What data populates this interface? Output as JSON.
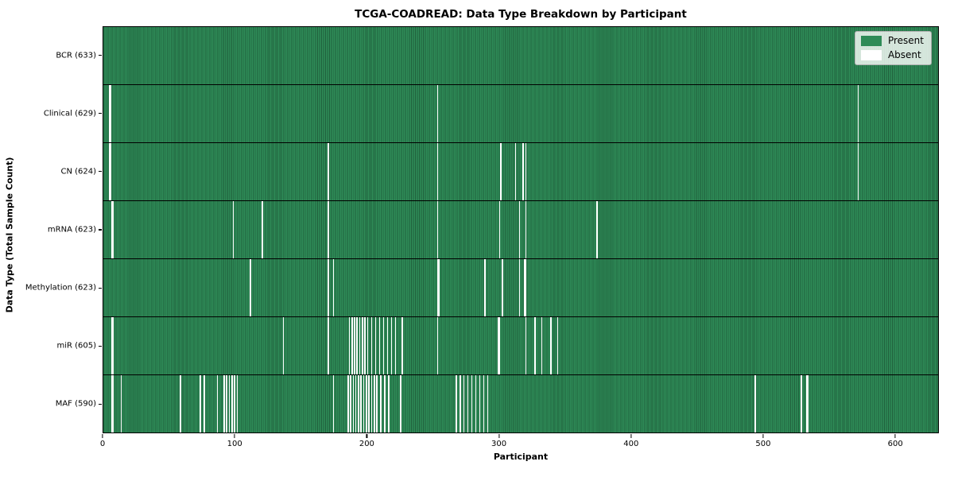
{
  "title": "TCGA-COADREAD: Data Type Breakdown by Participant",
  "chart_data": {
    "type": "heatmap",
    "title": "TCGA-COADREAD: Data Type Breakdown by Participant",
    "xlabel": "Participant",
    "ylabel": "Data Type (Total Sample Count)",
    "x_ticks": [
      0,
      100,
      200,
      300,
      400,
      500,
      600
    ],
    "x_range": [
      0,
      633
    ],
    "total_participants": 633,
    "grid": false,
    "legend": {
      "position": "upper right",
      "present_label": "Present",
      "absent_label": "Absent"
    },
    "colors": {
      "present": "#2e8b57",
      "present_edge": "#20603c",
      "absent": "#ffffff"
    },
    "rows": [
      {
        "name": "BCR",
        "label": "BCR (633)",
        "count": 633,
        "absent": []
      },
      {
        "name": "Clinical",
        "label": "Clinical (629)",
        "count": 629,
        "absent": [
          4,
          5,
          253,
          572
        ]
      },
      {
        "name": "CN",
        "label": "CN (624)",
        "count": 624,
        "absent": [
          4,
          5,
          170,
          253,
          301,
          312,
          318,
          320,
          572
        ]
      },
      {
        "name": "mRNA",
        "label": "mRNA (623)",
        "count": 623,
        "absent": [
          6,
          7,
          98,
          120,
          170,
          253,
          300,
          315,
          320,
          374
        ]
      },
      {
        "name": "Methylation",
        "label": "Methylation (623)",
        "count": 623,
        "absent": [
          111,
          170,
          174,
          253,
          254,
          289,
          302,
          315,
          319,
          320
        ]
      },
      {
        "name": "miR",
        "label": "miR (605)",
        "count": 605,
        "absent": [
          6,
          7,
          136,
          170,
          186,
          188,
          190,
          192,
          194,
          196,
          198,
          200,
          203,
          206,
          209,
          212,
          215,
          218,
          221,
          226,
          253,
          299,
          300,
          320,
          327,
          332,
          339,
          344
        ]
      },
      {
        "name": "MAF",
        "label": "MAF (590)",
        "count": 590,
        "absent": [
          6,
          7,
          13,
          58,
          73,
          76,
          86,
          91,
          93,
          95,
          97,
          99,
          101,
          174,
          185,
          187,
          189,
          191,
          193,
          195,
          197,
          199,
          201,
          203,
          205,
          207,
          210,
          213,
          216,
          225,
          267,
          270,
          273,
          276,
          279,
          282,
          285,
          288,
          291,
          494,
          529,
          533,
          534
        ]
      }
    ]
  }
}
